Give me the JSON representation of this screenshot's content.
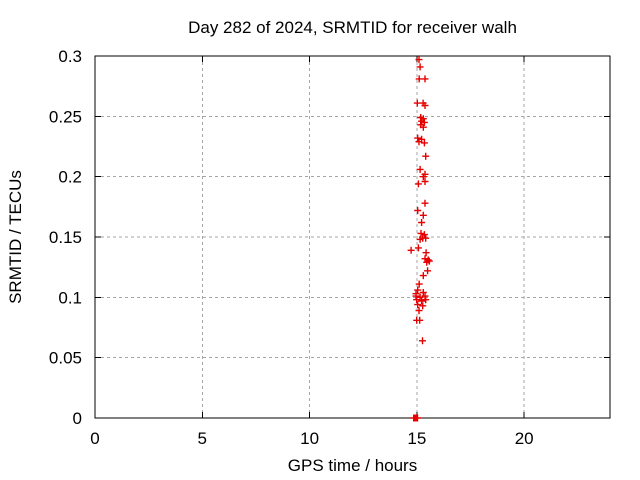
{
  "window": {
    "background": "#ffffff"
  },
  "chart_data": {
    "type": "scatter",
    "title": "Day 282 of 2024, SRMTID for receiver walh",
    "xlabel": "GPS time / hours",
    "ylabel": "SRMTID / TECUs",
    "xlim": [
      0,
      24
    ],
    "ylim": [
      0,
      0.3
    ],
    "xticks": [
      {
        "value": 0,
        "label": "0"
      },
      {
        "value": 5,
        "label": "5"
      },
      {
        "value": 10,
        "label": "10"
      },
      {
        "value": 15,
        "label": "15"
      },
      {
        "value": 20,
        "label": "20"
      }
    ],
    "yticks": [
      {
        "value": 0,
        "label": "0"
      },
      {
        "value": 0.05,
        "label": "0.05"
      },
      {
        "value": 0.1,
        "label": "0.1"
      },
      {
        "value": 0.15,
        "label": "0.15"
      },
      {
        "value": 0.2,
        "label": "0.2"
      },
      {
        "value": 0.25,
        "label": "0.25"
      },
      {
        "value": 0.3,
        "label": "0.3"
      }
    ],
    "grid": true,
    "legend": "none",
    "colors": {
      "marker": "#e60000",
      "grid": "#a6a6a6",
      "frame": "#000000",
      "text": "#000000"
    },
    "series": [
      {
        "name": "SRMTID",
        "marker": "plus",
        "color": "#e60000",
        "points": [
          [
            15.1,
            0.297
          ],
          [
            15.15,
            0.291
          ],
          [
            15.11,
            0.281
          ],
          [
            15.38,
            0.281
          ],
          [
            15.02,
            0.261
          ],
          [
            15.29,
            0.261
          ],
          [
            15.38,
            0.259
          ],
          [
            15.18,
            0.249
          ],
          [
            15.3,
            0.248
          ],
          [
            15.22,
            0.246
          ],
          [
            15.35,
            0.245
          ],
          [
            15.18,
            0.243
          ],
          [
            15.3,
            0.241
          ],
          [
            15.04,
            0.232
          ],
          [
            15.22,
            0.231
          ],
          [
            15.1,
            0.229
          ],
          [
            15.35,
            0.228
          ],
          [
            15.41,
            0.217
          ],
          [
            15.15,
            0.206
          ],
          [
            15.38,
            0.202
          ],
          [
            15.3,
            0.2
          ],
          [
            15.38,
            0.196
          ],
          [
            15.07,
            0.194
          ],
          [
            15.38,
            0.178
          ],
          [
            15.04,
            0.172
          ],
          [
            15.3,
            0.168
          ],
          [
            15.22,
            0.162
          ],
          [
            15.19,
            0.153
          ],
          [
            15.35,
            0.152
          ],
          [
            15.27,
            0.149
          ],
          [
            15.41,
            0.149
          ],
          [
            15.15,
            0.148
          ],
          [
            15.07,
            0.141
          ],
          [
            14.73,
            0.139
          ],
          [
            15.43,
            0.137
          ],
          [
            15.38,
            0.132
          ],
          [
            15.53,
            0.131
          ],
          [
            15.58,
            0.13
          ],
          [
            15.46,
            0.129
          ],
          [
            15.5,
            0.122
          ],
          [
            15.3,
            0.118
          ],
          [
            15.11,
            0.111
          ],
          [
            15.04,
            0.106
          ],
          [
            15.3,
            0.104
          ],
          [
            14.96,
            0.103
          ],
          [
            14.96,
            0.101
          ],
          [
            15.38,
            0.101
          ],
          [
            15.15,
            0.1
          ],
          [
            14.99,
            0.098
          ],
          [
            15.41,
            0.098
          ],
          [
            15.22,
            0.097
          ],
          [
            15.04,
            0.094
          ],
          [
            15.27,
            0.093
          ],
          [
            15.1,
            0.089
          ],
          [
            14.99,
            0.081
          ],
          [
            15.13,
            0.081
          ],
          [
            15.26,
            0.064
          ],
          [
            14.85,
            0.0
          ],
          [
            14.9,
            0.0
          ],
          [
            14.95,
            0.0
          ],
          [
            15.0,
            0.0
          ],
          [
            15.03,
            0.0
          ]
        ]
      }
    ]
  }
}
